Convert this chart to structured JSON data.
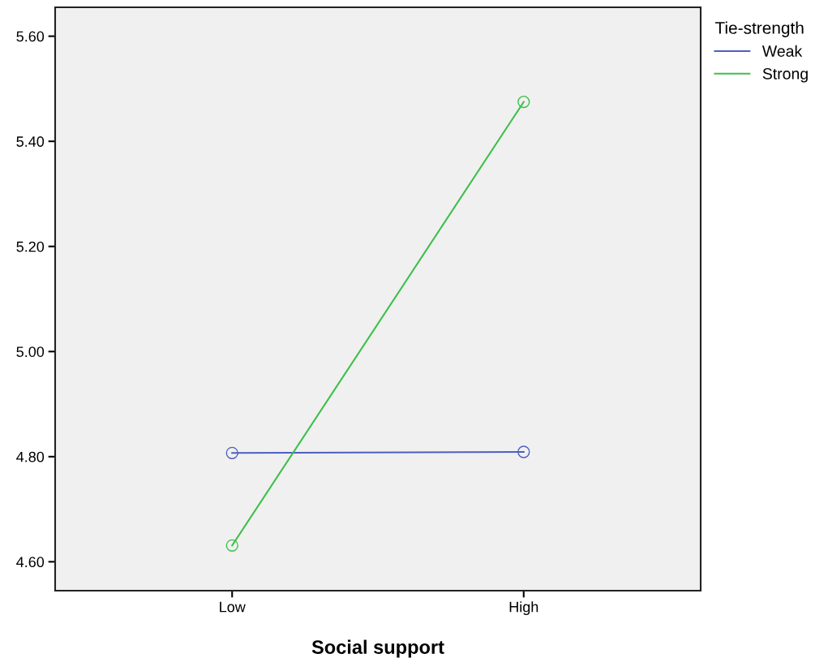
{
  "chart_data": {
    "type": "line",
    "xlabel": "Social support",
    "legend_title": "Tie-strength",
    "categories": [
      "Low",
      "High"
    ],
    "series": [
      {
        "name": "Weak",
        "color": "#4d5ec1",
        "values": [
          4.807,
          4.809
        ]
      },
      {
        "name": "Strong",
        "color": "#3cbf49",
        "values": [
          4.631,
          5.475
        ]
      }
    ],
    "ylim": [
      4.545,
      5.655
    ],
    "yticks": [
      {
        "value": 4.6,
        "label": "4.60"
      },
      {
        "value": 4.8,
        "label": "4.80"
      },
      {
        "value": 5.0,
        "label": "5.00"
      },
      {
        "value": 5.2,
        "label": "5.20"
      },
      {
        "value": 5.4,
        "label": "5.40"
      },
      {
        "value": 5.6,
        "label": "5.60"
      }
    ],
    "marker": "circle",
    "line_style": "solid",
    "grid": false,
    "legend": "top right"
  }
}
